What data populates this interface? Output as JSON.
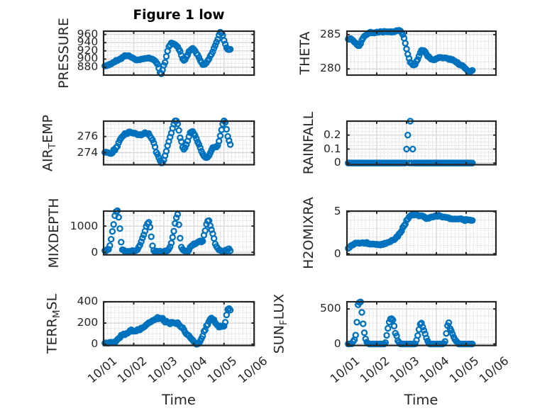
{
  "figure": {
    "title": "Figure 1 low",
    "xlabel": "Time",
    "background": "#ffffff"
  },
  "style": {
    "marker_color": "#0072BD",
    "axis_color": "#262626",
    "grid_major_color": "#d9d9d9",
    "grid_minor_color": "#b8b8b8",
    "title_color": "#000000"
  },
  "x_axis": {
    "tick_labels": [
      "10/01",
      "10/02",
      "10/03",
      "10/04",
      "10/05",
      "10/06"
    ],
    "range_days": [
      0,
      5
    ],
    "minor_step_days": 0.125,
    "label_rotation_deg": 38
  },
  "chart_data": [
    {
      "id": "pressure",
      "type": "scatter",
      "col": 0,
      "row": 0,
      "ylabel": "PRESSURE",
      "ylabel_parts": [
        {
          "text": "PRESSURE",
          "sub": false
        }
      ],
      "ylim": [
        861,
        968
      ],
      "yticks": [
        880,
        900,
        920,
        940,
        960
      ],
      "yminor_step": 10,
      "x_hours": {
        "start": 1,
        "step": 1,
        "count": 101
      },
      "values": [
        883.4,
        883.6,
        885.3,
        885.0,
        887.9,
        887.9,
        890.7,
        892.2,
        893.3,
        897.2,
        896.2,
        898.3,
        900.4,
        900.5,
        904.4,
        905.9,
        908.8,
        907.9,
        908.2,
        908.5,
        906.4,
        904.4,
        903.1,
        901.4,
        899.4,
        897.8,
        898.1,
        898.4,
        898.5,
        899.9,
        900.2,
        900.9,
        901.5,
        901.6,
        902.3,
        903.1,
        901.5,
        900.8,
        900.0,
        897.9,
        895.8,
        891.9,
        887.4,
        877.7,
        867.0,
        864.2,
        873.6,
        884.9,
        891.9,
        906.4,
        919.6,
        930.4,
        934.2,
        939.5,
        938.3,
        937.1,
        935.6,
        932.5,
        929.9,
        923.9,
        918.8,
        909.3,
        900.4,
        896.8,
        898.7,
        905.2,
        910.2,
        918.2,
        920.9,
        924.0,
        926.3,
        923.4,
        919.8,
        913.5,
        910.3,
        904.1,
        896.7,
        891.9,
        886.6,
        886.8,
        887.9,
        891.2,
        896.0,
        900.2,
        907.5,
        911.8,
        917.8,
        926.4,
        933.2,
        941.2,
        948.2,
        958.6,
        965.4,
        963.2,
        957.9,
        945.3,
        936.6,
        927.7,
        923.6,
        923.0,
        924.0
      ]
    },
    {
      "id": "theta",
      "type": "scatter",
      "col": 1,
      "row": 0,
      "ylabel": "THETA",
      "ylabel_parts": [
        {
          "text": "THETA",
          "sub": false
        }
      ],
      "ylim": [
        279.1,
        285.5
      ],
      "yticks": [
        280,
        285
      ],
      "yminor_step": 1,
      "x_hours": {
        "start": 1,
        "step": 1,
        "count": 101
      },
      "values": [
        284.35,
        284.3,
        284.42,
        284.27,
        284.14,
        283.88,
        283.79,
        283.53,
        283.39,
        283.4,
        283.67,
        284.19,
        284.5,
        284.76,
        284.89,
        285.0,
        285.13,
        285.28,
        285.36,
        285.25,
        285.29,
        285.24,
        285.29,
        285.37,
        285.33,
        285.38,
        285.45,
        285.39,
        285.34,
        285.48,
        285.43,
        285.41,
        285.42,
        285.39,
        285.44,
        285.35,
        285.43,
        285.39,
        285.49,
        285.58,
        285.59,
        285.62,
        285.55,
        285.31,
        285.0,
        284.47,
        283.74,
        282.91,
        282.14,
        281.54,
        280.96,
        280.81,
        280.59,
        280.57,
        280.66,
        281.1,
        281.38,
        281.87,
        282.33,
        282.7,
        282.69,
        282.67,
        282.5,
        282.16,
        281.84,
        281.79,
        281.55,
        281.4,
        281.35,
        281.33,
        281.35,
        281.5,
        281.54,
        281.67,
        281.66,
        281.66,
        281.58,
        281.61,
        281.61,
        281.59,
        281.53,
        281.38,
        281.47,
        281.33,
        281.37,
        281.23,
        281.12,
        280.97,
        280.95,
        280.66,
        280.62,
        280.52,
        280.5,
        280.32,
        280.12,
        279.94,
        279.78,
        279.55,
        279.61,
        279.69,
        279.79
      ]
    },
    {
      "id": "air_temp",
      "type": "scatter",
      "col": 0,
      "row": 1,
      "ylabel": "AIR_TEMP",
      "ylabel_parts": [
        {
          "text": "AIR",
          "sub": false
        },
        {
          "text": "T",
          "sub": true
        },
        {
          "text": "EMP",
          "sub": false
        }
      ],
      "ylim": [
        272.5,
        277.9
      ],
      "yticks": [
        274,
        276
      ],
      "yminor_step": 0.5,
      "x_hours": {
        "start": 1,
        "step": 1,
        "count": 101
      },
      "values": [
        274.02,
        274.06,
        274.02,
        273.97,
        273.91,
        273.88,
        273.98,
        274.35,
        274.3,
        274.63,
        274.77,
        275.23,
        275.57,
        275.82,
        275.99,
        276.13,
        276.37,
        276.31,
        276.35,
        276.55,
        276.57,
        276.48,
        276.45,
        276.39,
        276.42,
        276.33,
        276.21,
        276.2,
        276.25,
        276.17,
        276.26,
        276.37,
        276.48,
        276.37,
        276.33,
        276.37,
        276.03,
        275.81,
        275.58,
        275.19,
        274.71,
        274.04,
        273.78,
        273.38,
        273.0,
        272.73,
        272.75,
        273.08,
        273.62,
        274.16,
        274.85,
        275.37,
        275.92,
        276.42,
        277.02,
        277.52,
        277.93,
        277.93,
        277.56,
        276.75,
        275.84,
        275.36,
        274.66,
        274.41,
        274.61,
        274.98,
        275.44,
        275.97,
        276.47,
        276.55,
        276.62,
        276.35,
        276.11,
        275.72,
        275.31,
        275.01,
        274.6,
        274.16,
        273.84,
        273.58,
        273.43,
        273.37,
        273.44,
        273.62,
        273.94,
        274.3,
        274.62,
        274.65,
        274.7,
        274.7,
        274.89,
        275.41,
        276.08,
        276.82,
        277.54,
        277.94,
        277.75,
        276.89,
        276.01,
        275.48,
        275.0
      ]
    },
    {
      "id": "rainfall",
      "type": "scatter",
      "col": 1,
      "row": 1,
      "ylabel": "RAINFALL",
      "ylabel_parts": [
        {
          "text": "RAINFALL",
          "sub": false
        }
      ],
      "ylim": [
        -0.012,
        0.3
      ],
      "yticks": [
        0,
        0.1,
        0.2
      ],
      "yminor_step": 0.025,
      "x_hours": {
        "start": 1,
        "step": 1,
        "count": 101
      },
      "values": [
        0.0,
        0.0,
        0.0,
        0.0,
        0.0,
        0.0,
        0.0,
        0.0,
        0.0,
        0.0,
        0.0,
        0.0,
        0.0,
        0.0,
        0.0,
        0.0,
        0.0,
        0.0,
        0.0,
        0.0,
        0.0,
        0.0,
        0.0,
        0.0,
        0.0,
        0.0,
        0.0,
        0.0,
        0.0,
        0.0,
        0.0,
        0.0,
        0.0,
        0.0,
        0.0,
        0.0,
        0.0,
        0.0,
        0.0,
        0.0,
        0.0,
        0.0,
        0.0,
        0.0,
        0.0,
        0.0,
        0.0,
        0.1,
        0.2,
        0.0,
        0.3,
        0.0,
        0.1,
        0.0,
        0.0,
        0.0,
        0.0,
        0.0,
        0.0,
        0.0,
        0.0,
        0.0,
        0.0,
        0.0,
        0.0,
        0.0,
        0.0,
        0.0,
        0.0,
        0.0,
        0.0,
        0.0,
        0.0,
        0.0,
        0.0,
        0.0,
        0.0,
        0.0,
        0.0,
        0.0,
        0.0,
        0.0,
        0.0,
        0.0,
        0.0,
        0.0,
        0.0,
        0.0,
        0.0,
        0.0,
        0.0,
        0.0,
        0.0,
        0.0,
        0.0,
        0.0,
        0.0,
        0.0,
        0.0,
        0.0,
        0.0
      ]
    },
    {
      "id": "mixdepth",
      "type": "scatter",
      "col": 0,
      "row": 2,
      "ylabel": "MIXDEPTH",
      "ylabel_parts": [
        {
          "text": "MIXDEPTH",
          "sub": false
        }
      ],
      "ylim": [
        -95,
        1571
      ],
      "yticks": [
        0,
        1000
      ],
      "yminor_step": 200,
      "x_hours": {
        "start": 1,
        "step": 1,
        "count": 101
      },
      "values": [
        65.0,
        57.0,
        119.0,
        114.0,
        256.0,
        499.0,
        795.0,
        1061.0,
        1397.0,
        1555.0,
        1585.0,
        1336.0,
        903.0,
        388.0,
        100.0,
        82.0,
        36.0,
        25.0,
        35.0,
        5.0,
        40.0,
        22.0,
        67.0,
        53.0,
        53.0,
        74.0,
        102.0,
        201.0,
        277.0,
        406.0,
        546.0,
        665.0,
        808.0,
        988.0,
        1092.0,
        1145.0,
        960.0,
        595.0,
        248.0,
        72.0,
        5.0,
        46.0,
        35.0,
        5.0,
        44.0,
        22.0,
        17.0,
        13.0,
        55.0,
        45.0,
        67.0,
        120.0,
        209.0,
        355.0,
        572.0,
        806.0,
        1102.0,
        1319.0,
        1447.0,
        1053.0,
        539.0,
        197.0,
        112.0,
        67.0,
        58.0,
        47.0,
        25.0,
        88.0,
        196.0,
        242.0,
        265.0,
        326.0,
        318.0,
        349.0,
        384.0,
        413.0,
        436.0,
        396.0,
        425.0,
        653.0,
        825.0,
        1071.0,
        1195.0,
        1208.0,
        1012.0,
        861.0,
        709.0,
        527.0,
        320.0,
        223.0,
        154.0,
        86.0,
        78.0,
        46.0,
        27.0,
        36.0,
        80.0,
        35.0,
        118.0,
        135.0,
        59.0
      ]
    },
    {
      "id": "h2omixra",
      "type": "scatter",
      "col": 1,
      "row": 2,
      "ylabel": "H2OMIXRA",
      "ylabel_parts": [
        {
          "text": "H2OMIXRA",
          "sub": false
        }
      ],
      "ylim": [
        -0.13,
        5.07
      ],
      "yticks": [
        0,
        5
      ],
      "yminor_step": 1,
      "x_hours": {
        "start": 1,
        "step": 1,
        "count": 101
      },
      "values": [
        0.64,
        0.73,
        0.92,
        1.02,
        1.05,
        1.19,
        1.28,
        1.27,
        1.28,
        1.23,
        1.26,
        1.29,
        1.31,
        1.23,
        1.23,
        1.34,
        1.17,
        1.19,
        1.13,
        1.15,
        1.16,
        1.14,
        1.1,
        1.13,
        1.06,
        1.1,
        1.03,
        1.14,
        1.09,
        1.24,
        1.18,
        1.3,
        1.34,
        1.39,
        1.43,
        1.59,
        1.63,
        1.66,
        1.8,
        2.02,
        2.05,
        2.37,
        2.49,
        2.69,
        3.12,
        3.34,
        3.52,
        3.98,
        4.13,
        4.36,
        4.5,
        4.61,
        4.63,
        4.59,
        4.72,
        4.62,
        4.59,
        4.49,
        4.51,
        4.53,
        4.48,
        4.42,
        4.27,
        4.17,
        4.24,
        4.21,
        4.32,
        4.39,
        4.36,
        4.4,
        4.51,
        4.52,
        4.44,
        4.57,
        4.48,
        4.43,
        4.35,
        4.37,
        4.37,
        4.3,
        4.31,
        4.27,
        4.15,
        4.16,
        4.14,
        4.13,
        4.15,
        4.14,
        4.12,
        4.14,
        4.15,
        4.17,
        4.06,
        4.07,
        3.93,
        4.07,
        4.06,
        4.01,
        4.02,
        3.96,
        3.96
      ]
    },
    {
      "id": "terr_msl",
      "type": "scatter",
      "col": 0,
      "row": 3,
      "ylabel": "TERR_MSL",
      "ylabel_parts": [
        {
          "text": "TERR",
          "sub": false
        },
        {
          "text": "M",
          "sub": true
        },
        {
          "text": "SL",
          "sub": false
        }
      ],
      "ylim": [
        -12,
        402
      ],
      "yticks": [
        0,
        200,
        400
      ],
      "yminor_step": 50,
      "x_hours": {
        "start": 1,
        "step": 1,
        "count": 101
      },
      "values": [
        11.0,
        13.0,
        10.0,
        9.0,
        18.0,
        18.0,
        14.0,
        20.0,
        16.0,
        31.0,
        44.0,
        55.0,
        62.0,
        85.0,
        87.0,
        97.0,
        90.0,
        101.0,
        104.0,
        112.0,
        128.0,
        136.0,
        122.0,
        125.0,
        124.0,
        125.0,
        139.0,
        135.0,
        136.0,
        154.0,
        153.0,
        162.0,
        169.0,
        184.0,
        192.0,
        204.0,
        207.0,
        214.0,
        224.0,
        228.0,
        235.0,
        238.0,
        255.0,
        241.0,
        247.0,
        242.0,
        246.0,
        222.0,
        209.0,
        219.0,
        210.0,
        201.0,
        192.0,
        208.0,
        207.0,
        202.0,
        199.0,
        194.0,
        204.0,
        187.0,
        170.0,
        160.0,
        157.0,
        138.0,
        113.0,
        97.0,
        88.0,
        82.0,
        64.0,
        50.0,
        40.0,
        23.0,
        9.0,
        0.0,
        2.0,
        8.0,
        28.0,
        53.0,
        77.0,
        121.0,
        134.0,
        176.0,
        187.0,
        215.0,
        238.0,
        248.0,
        235.0,
        231.0,
        203.0,
        188.0,
        178.0,
        162.0,
        173.0,
        167.0,
        173.0,
        171.0,
        208.0,
        277.0,
        329.0,
        338.0,
        323.0
      ]
    },
    {
      "id": "sun_flux",
      "type": "scatter",
      "col": 1,
      "row": 3,
      "ylabel": "SUN_FLUX",
      "ylabel_parts": [
        {
          "text": "SUN",
          "sub": false
        },
        {
          "text": "F",
          "sub": true
        },
        {
          "text": "LUX",
          "sub": false
        }
      ],
      "ylim": [
        -22,
        603
      ],
      "yticks": [
        0,
        500
      ],
      "yminor_step": 100,
      "x_hours": {
        "start": 1,
        "step": 1,
        "count": 101
      },
      "values": [
        0,
        0,
        2,
        2,
        35,
        60,
        126,
        311,
        560,
        594,
        601,
        452,
        288,
        160,
        72,
        26,
        8,
        0,
        0,
        0,
        0,
        0,
        0,
        0,
        0,
        0,
        0,
        0,
        0,
        0,
        20,
        123,
        223,
        312,
        356,
        361,
        343,
        256,
        154,
        116,
        45,
        23,
        1,
        0,
        0,
        0,
        0,
        0,
        0,
        0,
        0,
        0,
        0,
        0,
        2,
        53,
        120,
        206,
        282,
        298,
        242,
        195,
        144,
        84,
        41,
        5,
        0,
        0,
        0,
        0,
        0,
        0,
        0,
        0,
        0,
        0,
        0,
        7,
        36,
        150,
        262,
        303,
        222,
        189,
        144,
        98,
        64,
        39,
        24,
        0,
        0,
        0,
        0,
        0,
        0,
        0,
        0,
        0,
        0,
        0,
        0
      ]
    }
  ]
}
